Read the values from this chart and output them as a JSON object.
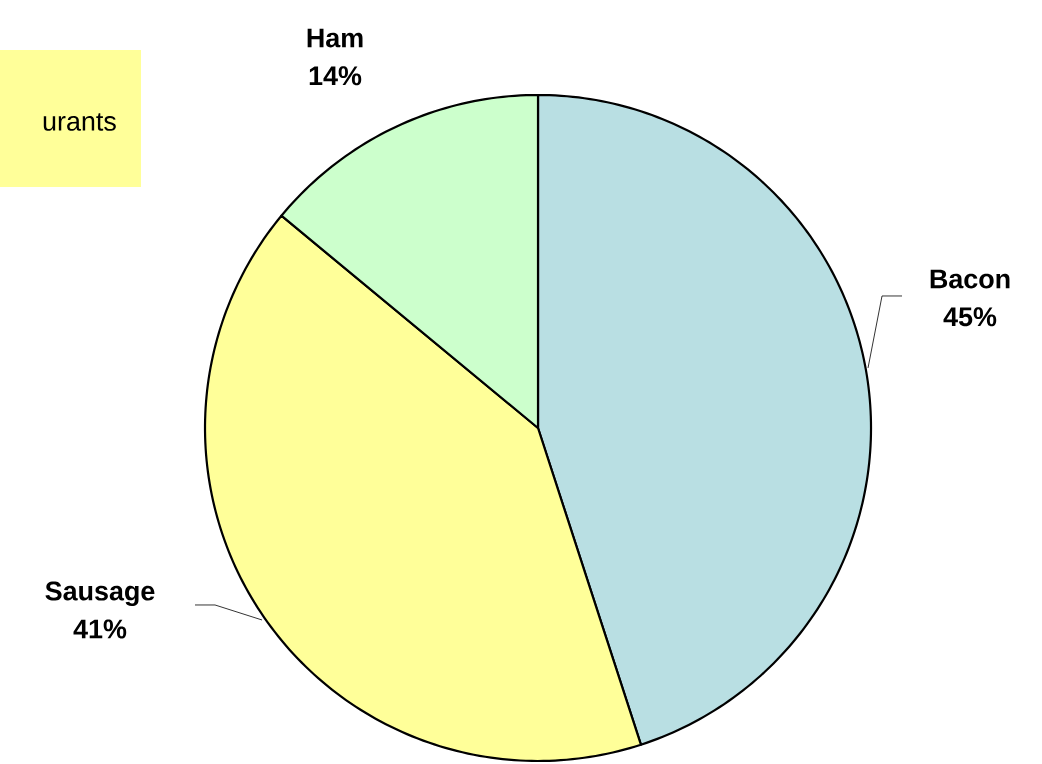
{
  "chart_data": {
    "type": "pie",
    "categories": [
      "Bacon",
      "Sausage",
      "Ham"
    ],
    "values": [
      45,
      41,
      14
    ],
    "value_labels": [
      "45%",
      "41%",
      "14%"
    ],
    "colors": [
      "#b9dfe3",
      "#ffff99",
      "#ccffcc"
    ],
    "annotations": [
      "urants"
    ]
  }
}
